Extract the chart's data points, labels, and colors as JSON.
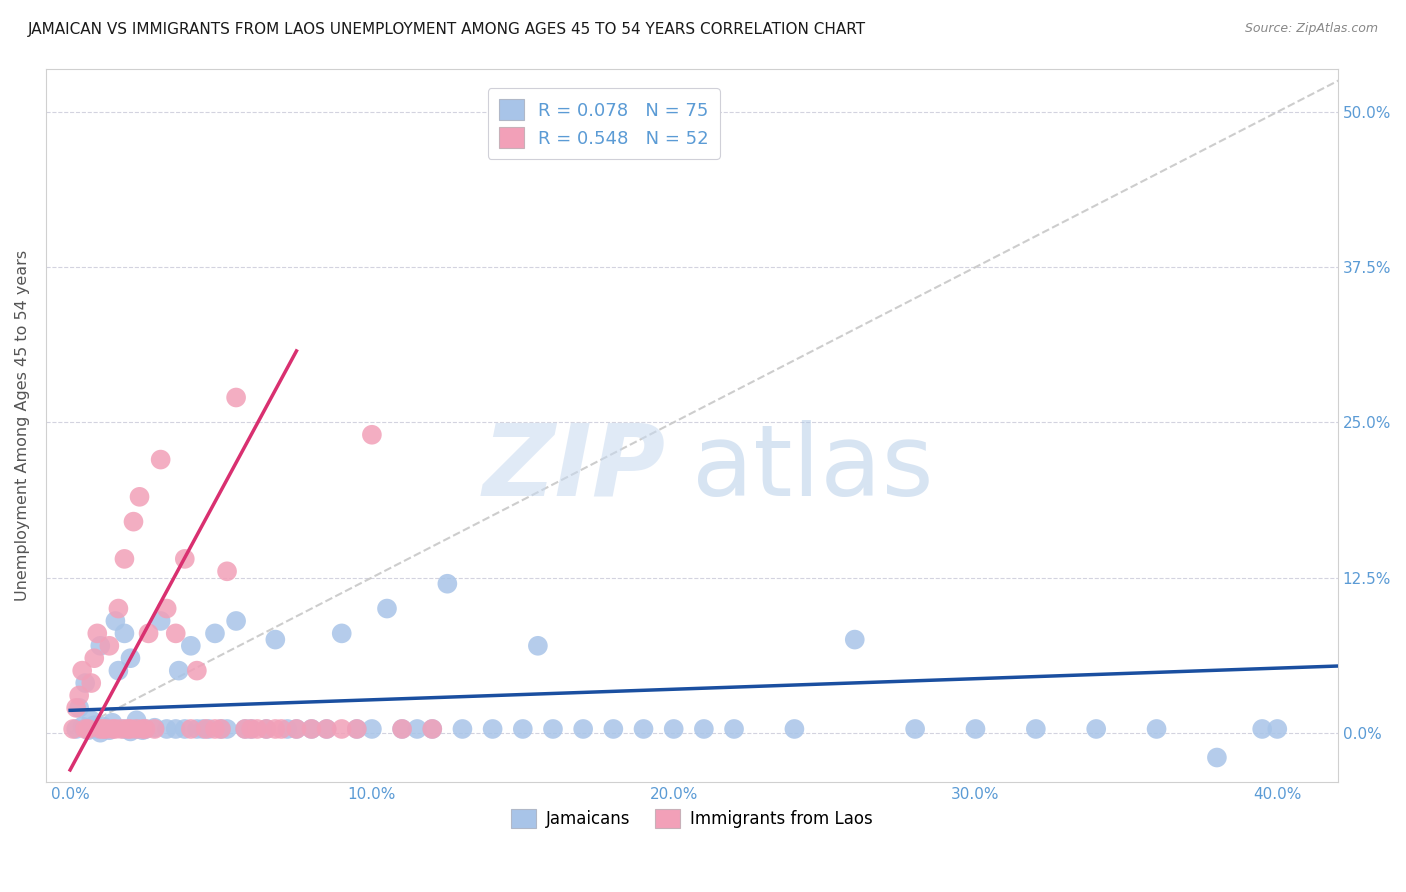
{
  "title": "JAMAICAN VS IMMIGRANTS FROM LAOS UNEMPLOYMENT AMONG AGES 45 TO 54 YEARS CORRELATION CHART",
  "source": "Source: ZipAtlas.com",
  "ylabel": "Unemployment Among Ages 45 to 54 years",
  "xlabel_ticks": [
    "0.0%",
    "10.0%",
    "20.0%",
    "30.0%",
    "40.0%"
  ],
  "xlabel_vals": [
    0.0,
    0.1,
    0.2,
    0.3,
    0.4
  ],
  "ylabel_ticks": [
    "0.0%",
    "12.5%",
    "25.0%",
    "37.5%",
    "50.0%"
  ],
  "ylabel_vals": [
    0.0,
    0.125,
    0.25,
    0.375,
    0.5
  ],
  "xlim": [
    -0.008,
    0.42
  ],
  "ylim": [
    -0.04,
    0.535
  ],
  "jamaicans_R": 0.078,
  "jamaicans_N": 75,
  "laos_R": 0.548,
  "laos_N": 52,
  "jamaicans_color": "#a8c4e8",
  "laos_color": "#f2a0b8",
  "jamaicans_line_color": "#1a4fa0",
  "laos_line_color": "#d93070",
  "diagonal_color": "#c8c8c8",
  "tick_color": "#5b9bd5",
  "ylabel_color": "#555555",
  "title_color": "#1a1a1a",
  "source_color": "#888888",
  "jamaicans_x": [
    0.002,
    0.003,
    0.004,
    0.005,
    0.006,
    0.007,
    0.008,
    0.009,
    0.01,
    0.01,
    0.011,
    0.012,
    0.013,
    0.014,
    0.015,
    0.016,
    0.018,
    0.018,
    0.02,
    0.02,
    0.022,
    0.022,
    0.024,
    0.025,
    0.028,
    0.03,
    0.032,
    0.035,
    0.036,
    0.038,
    0.04,
    0.042,
    0.044,
    0.046,
    0.048,
    0.05,
    0.052,
    0.055,
    0.058,
    0.06,
    0.065,
    0.068,
    0.072,
    0.075,
    0.08,
    0.085,
    0.09,
    0.095,
    0.1,
    0.105,
    0.11,
    0.115,
    0.12,
    0.125,
    0.13,
    0.14,
    0.15,
    0.155,
    0.16,
    0.17,
    0.18,
    0.19,
    0.2,
    0.21,
    0.22,
    0.24,
    0.26,
    0.28,
    0.3,
    0.32,
    0.34,
    0.36,
    0.38,
    0.395,
    0.4
  ],
  "jamaicans_y": [
    0.003,
    0.02,
    0.005,
    0.04,
    0.002,
    0.01,
    0.006,
    0.003,
    0.0,
    0.07,
    0.005,
    0.003,
    0.002,
    0.008,
    0.09,
    0.05,
    0.003,
    0.08,
    0.001,
    0.06,
    0.003,
    0.01,
    0.002,
    0.003,
    0.004,
    0.09,
    0.003,
    0.003,
    0.05,
    0.003,
    0.07,
    0.003,
    0.003,
    0.003,
    0.08,
    0.003,
    0.003,
    0.09,
    0.003,
    0.003,
    0.003,
    0.075,
    0.003,
    0.003,
    0.003,
    0.003,
    0.08,
    0.003,
    0.003,
    0.1,
    0.003,
    0.003,
    0.003,
    0.12,
    0.003,
    0.003,
    0.003,
    0.07,
    0.003,
    0.003,
    0.003,
    0.003,
    0.003,
    0.003,
    0.003,
    0.003,
    0.075,
    0.003,
    0.003,
    0.003,
    0.003,
    0.003,
    -0.02,
    0.003,
    0.003
  ],
  "laos_x": [
    0.001,
    0.002,
    0.003,
    0.004,
    0.005,
    0.006,
    0.007,
    0.008,
    0.009,
    0.01,
    0.011,
    0.012,
    0.013,
    0.014,
    0.015,
    0.016,
    0.017,
    0.018,
    0.019,
    0.02,
    0.021,
    0.022,
    0.023,
    0.024,
    0.025,
    0.026,
    0.028,
    0.03,
    0.032,
    0.035,
    0.038,
    0.04,
    0.042,
    0.045,
    0.048,
    0.05,
    0.052,
    0.055,
    0.058,
    0.06,
    0.062,
    0.065,
    0.068,
    0.07,
    0.075,
    0.08,
    0.085,
    0.09,
    0.095,
    0.1,
    0.11,
    0.12
  ],
  "laos_y": [
    0.003,
    0.02,
    0.03,
    0.05,
    0.003,
    0.003,
    0.04,
    0.06,
    0.08,
    0.003,
    0.003,
    0.003,
    0.07,
    0.003,
    0.003,
    0.1,
    0.003,
    0.14,
    0.003,
    0.003,
    0.17,
    0.003,
    0.19,
    0.003,
    0.003,
    0.08,
    0.003,
    0.22,
    0.1,
    0.08,
    0.14,
    0.003,
    0.05,
    0.003,
    0.003,
    0.003,
    0.13,
    0.27,
    0.003,
    0.003,
    0.003,
    0.003,
    0.003,
    0.003,
    0.003,
    0.003,
    0.003,
    0.003,
    0.003,
    0.24,
    0.003,
    0.003
  ]
}
